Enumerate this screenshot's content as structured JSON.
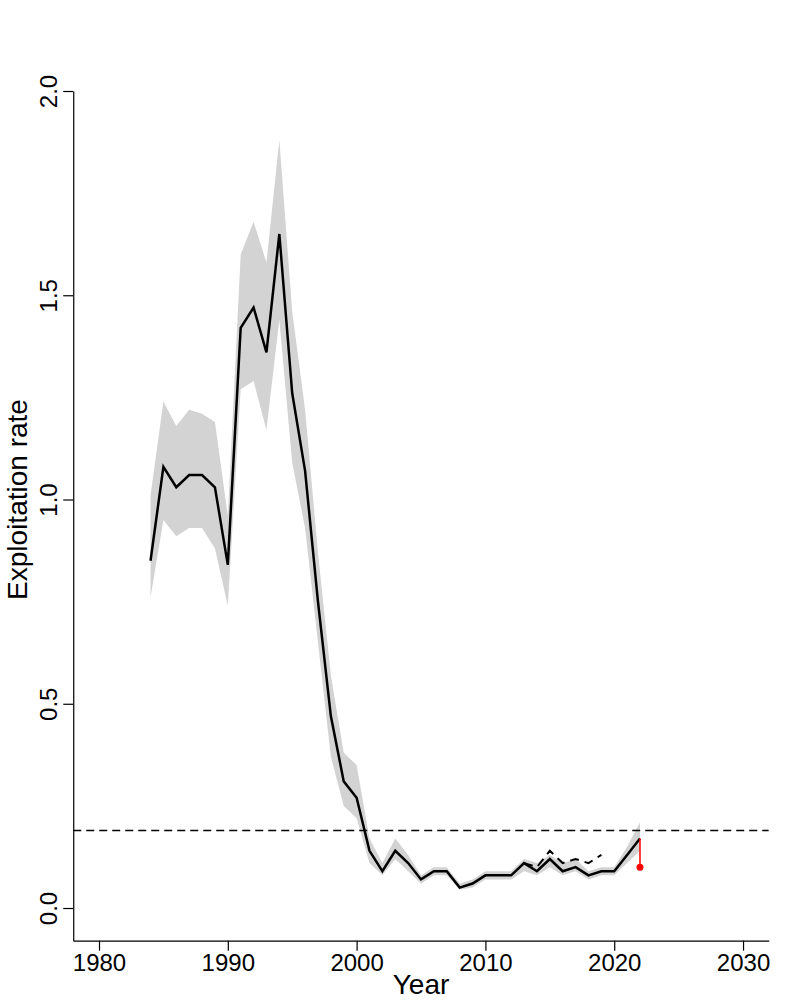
{
  "chart_data": {
    "type": "line",
    "x_label": "Year",
    "y_label": "Exploitation rate",
    "x": [
      1984,
      1985,
      1986,
      1987,
      1988,
      1989,
      1990,
      1991,
      1992,
      1993,
      1994,
      1995,
      1996,
      1997,
      1998,
      1999,
      2000,
      2001,
      2002,
      2003,
      2004,
      2005,
      2006,
      2007,
      2008,
      2009,
      2010,
      2011,
      2012,
      2013,
      2014,
      2015,
      2016,
      2017,
      2018,
      2019,
      2020,
      2021,
      2022
    ],
    "series": [
      {
        "type": "line",
        "color": "#000000",
        "line_style": "solid",
        "values": [
          0.85,
          1.08,
          1.03,
          1.06,
          1.06,
          1.03,
          0.84,
          1.42,
          1.47,
          1.36,
          1.65,
          1.26,
          1.07,
          0.75,
          0.47,
          0.31,
          0.27,
          0.14,
          0.09,
          0.14,
          0.11,
          0.07,
          0.09,
          0.09,
          0.05,
          0.06,
          0.08,
          0.08,
          0.08,
          0.11,
          0.09,
          0.12,
          0.09,
          0.1,
          0.08,
          0.09,
          0.09,
          0.13,
          0.17
        ],
        "lower": [
          0.76,
          0.95,
          0.91,
          0.93,
          0.93,
          0.88,
          0.74,
          1.27,
          1.29,
          1.17,
          1.44,
          1.09,
          0.93,
          0.65,
          0.37,
          0.25,
          0.22,
          0.11,
          0.08,
          0.12,
          0.09,
          0.06,
          0.08,
          0.08,
          0.045,
          0.05,
          0.07,
          0.07,
          0.07,
          0.09,
          0.08,
          0.1,
          0.08,
          0.09,
          0.07,
          0.08,
          0.08,
          0.11,
          0.14
        ],
        "upper": [
          1.01,
          1.24,
          1.18,
          1.22,
          1.21,
          1.19,
          0.96,
          1.6,
          1.68,
          1.58,
          1.88,
          1.46,
          1.22,
          0.87,
          0.57,
          0.38,
          0.35,
          0.17,
          0.11,
          0.17,
          0.13,
          0.08,
          0.1,
          0.1,
          0.06,
          0.07,
          0.09,
          0.09,
          0.09,
          0.12,
          0.11,
          0.13,
          0.11,
          0.12,
          0.09,
          0.1,
          0.1,
          0.15,
          0.21
        ]
      },
      {
        "type": "line",
        "color": "#000000",
        "line_style": "dashed",
        "values": [
          null,
          null,
          null,
          null,
          null,
          null,
          null,
          null,
          null,
          null,
          null,
          null,
          null,
          null,
          null,
          null,
          null,
          null,
          null,
          null,
          null,
          null,
          null,
          null,
          null,
          null,
          null,
          null,
          null,
          0.11,
          0.1,
          0.14,
          0.11,
          0.12,
          0.11,
          0.13,
          null,
          null,
          null
        ]
      },
      {
        "type": "scatter",
        "color": "#ff0000",
        "marker": "circle",
        "values": [
          null,
          null,
          null,
          null,
          null,
          null,
          null,
          null,
          null,
          null,
          null,
          null,
          null,
          null,
          null,
          null,
          null,
          null,
          null,
          null,
          null,
          null,
          null,
          null,
          null,
          null,
          null,
          null,
          null,
          null,
          null,
          null,
          null,
          null,
          null,
          null,
          null,
          null,
          0.1
        ]
      }
    ],
    "reference_line": 0.19,
    "xlim": [
      1978,
      2032
    ],
    "ylim": [
      -0.08,
      2.0
    ],
    "xticks": [
      1980,
      1990,
      2000,
      2010,
      2020,
      2030
    ],
    "yticks": [
      {
        "value": 0,
        "label": "0.0"
      },
      {
        "value": 0.5,
        "label": "0.5"
      },
      {
        "value": 1,
        "label": "1.0"
      },
      {
        "value": 1.5,
        "label": "1.5"
      },
      {
        "value": 2,
        "label": "2.0"
      }
    ]
  }
}
